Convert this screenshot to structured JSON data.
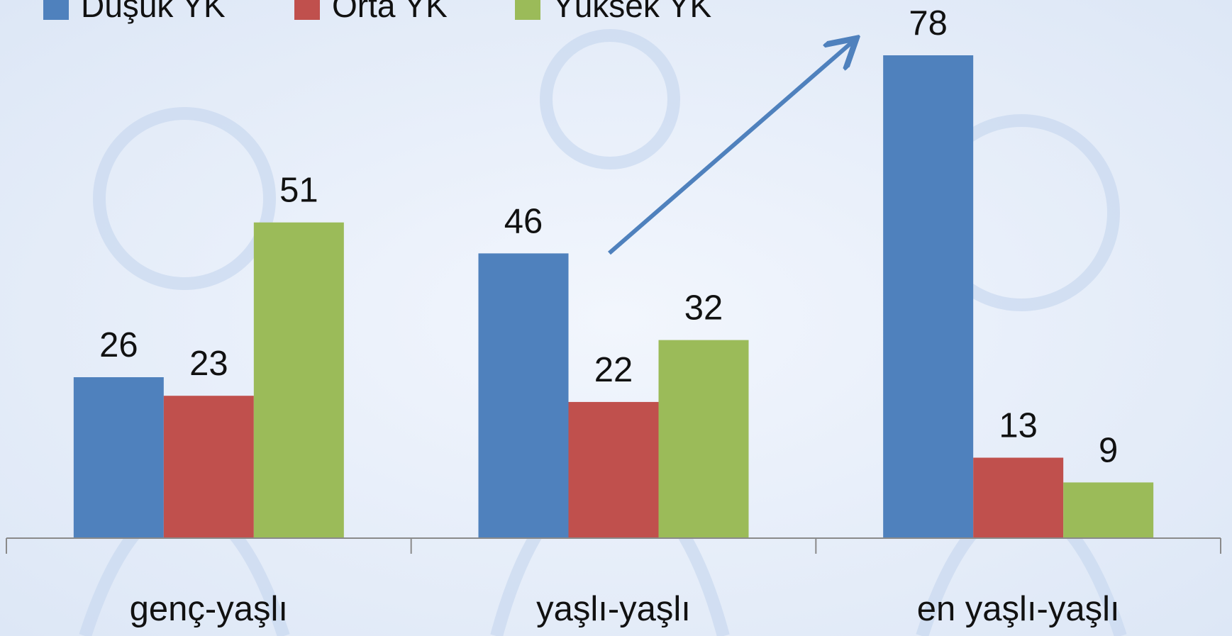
{
  "chart_data": {
    "type": "bar",
    "categories": [
      "genç-yaşlı",
      "yaşlı-yaşlı",
      "en yaşlı-yaşlı"
    ],
    "series": [
      {
        "name": "Düşük YK",
        "color": "#4f81bd",
        "values": [
          26,
          46,
          78
        ]
      },
      {
        "name": "Orta YK",
        "color": "#c0504d",
        "values": [
          23,
          22,
          13
        ]
      },
      {
        "name": "Yüksek YK",
        "color": "#9bbb59",
        "values": [
          51,
          32,
          9
        ]
      }
    ],
    "data_labels": true,
    "legend": "top"
  }
}
